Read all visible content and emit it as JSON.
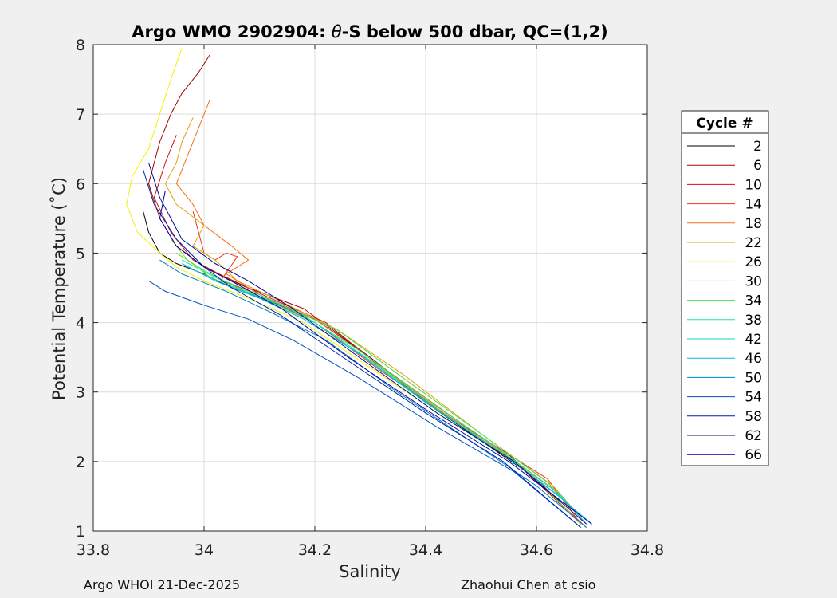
{
  "chart_data": {
    "type": "line",
    "title_prefix": "Argo WMO 2902904: ",
    "title_theta": "θ",
    "title_suffix": "-S below 500 dbar,  QC=(1,2)",
    "xlabel": "Salinity",
    "ylabel": "Potential Temperature (˚C)",
    "xlim": [
      33.8,
      34.8
    ],
    "ylim": [
      1,
      8
    ],
    "xticks": [
      "33.8",
      "34",
      "34.2",
      "34.4",
      "34.6",
      "34.8"
    ],
    "yticks": [
      "1",
      "2",
      "3",
      "4",
      "5",
      "6",
      "7",
      "8"
    ],
    "grid": true,
    "legend_title": "Cycle #",
    "legend": [
      {
        "label": "2",
        "color": "#000000"
      },
      {
        "label": "6",
        "color": "#a50000"
      },
      {
        "label": "10",
        "color": "#d41010"
      },
      {
        "label": "14",
        "color": "#e83a1a"
      },
      {
        "label": "18",
        "color": "#f07018"
      },
      {
        "label": "22",
        "color": "#e0a010"
      },
      {
        "label": "26",
        "color": "#f5f000"
      },
      {
        "label": "30",
        "color": "#9be020"
      },
      {
        "label": "34",
        "color": "#40e040"
      },
      {
        "label": "38",
        "color": "#20e0a0"
      },
      {
        "label": "42",
        "color": "#10d0d0"
      },
      {
        "label": "46",
        "color": "#00b8e0"
      },
      {
        "label": "50",
        "color": "#0080c8"
      },
      {
        "label": "54",
        "color": "#0050c0"
      },
      {
        "label": "58",
        "color": "#0020a8"
      },
      {
        "label": "62",
        "color": "#001090"
      },
      {
        "label": "66",
        "color": "#0000a0"
      }
    ],
    "series": [
      {
        "name": "2",
        "x": [
          33.89,
          33.9,
          33.92,
          33.95,
          34.0,
          34.05,
          34.12,
          34.2,
          34.3,
          34.4,
          34.5,
          34.6,
          34.68
        ],
        "y": [
          5.6,
          5.3,
          5.0,
          4.85,
          4.7,
          4.5,
          4.3,
          4.05,
          3.5,
          2.85,
          2.3,
          1.75,
          1.1
        ]
      },
      {
        "name": "6",
        "x": [
          34.01,
          33.99,
          33.96,
          33.94,
          33.92,
          33.9,
          33.92,
          33.95,
          34.0,
          34.08,
          34.18,
          34.3,
          34.42,
          34.55,
          34.68
        ],
        "y": [
          7.85,
          7.6,
          7.3,
          7.0,
          6.6,
          6.0,
          5.5,
          5.1,
          4.8,
          4.5,
          4.2,
          3.5,
          2.75,
          2.1,
          1.1
        ]
      },
      {
        "name": "10",
        "x": [
          33.95,
          33.93,
          33.91,
          33.94,
          33.98,
          34.05,
          34.12,
          34.22,
          34.32,
          34.45,
          34.56,
          34.69
        ],
        "y": [
          6.7,
          6.3,
          5.8,
          5.3,
          4.9,
          4.6,
          4.35,
          4.0,
          3.35,
          2.6,
          2.0,
          1.05
        ]
      },
      {
        "name": "14",
        "x": [
          33.98,
          33.99,
          34.0,
          34.02,
          34.04,
          34.06,
          34.03,
          34.1,
          34.2,
          34.32,
          34.48,
          34.62,
          34.68
        ],
        "y": [
          5.6,
          5.3,
          5.0,
          4.9,
          5.0,
          4.95,
          4.6,
          4.4,
          4.0,
          3.3,
          2.45,
          1.75,
          1.1
        ]
      },
      {
        "name": "18",
        "x": [
          34.01,
          33.99,
          33.97,
          33.95,
          33.98,
          34.0,
          34.05,
          34.08,
          34.04,
          34.1,
          34.2,
          34.35,
          34.5,
          34.63,
          34.69
        ],
        "y": [
          7.2,
          6.8,
          6.4,
          6.0,
          5.7,
          5.4,
          5.1,
          4.9,
          4.7,
          4.4,
          4.05,
          3.2,
          2.35,
          1.6,
          1.1
        ]
      },
      {
        "name": "22",
        "x": [
          33.98,
          33.96,
          33.95,
          33.93,
          33.95,
          34.0,
          33.98,
          34.02,
          34.06,
          34.14,
          34.24,
          34.36,
          34.5,
          34.63,
          34.69
        ],
        "y": [
          6.95,
          6.6,
          6.3,
          6.0,
          5.7,
          5.4,
          5.1,
          4.9,
          4.6,
          4.3,
          3.9,
          3.25,
          2.4,
          1.65,
          1.1
        ]
      },
      {
        "name": "26",
        "x": [
          33.96,
          33.94,
          33.92,
          33.9,
          33.87,
          33.86,
          33.88,
          33.92,
          33.95,
          34.0,
          34.08,
          34.18,
          34.3,
          34.44,
          34.58,
          34.68
        ],
        "y": [
          7.95,
          7.5,
          7.0,
          6.5,
          6.1,
          5.7,
          5.3,
          5.0,
          4.8,
          4.6,
          4.35,
          4.0,
          3.35,
          2.6,
          1.9,
          1.1
        ]
      },
      {
        "name": "30",
        "x": [
          33.94,
          33.97,
          34.02,
          34.1,
          34.2,
          34.32,
          34.45,
          34.58,
          34.68
        ],
        "y": [
          5.2,
          4.9,
          4.6,
          4.35,
          4.0,
          3.35,
          2.6,
          1.9,
          1.1
        ]
      },
      {
        "name": "34",
        "x": [
          33.95,
          34.0,
          34.06,
          34.14,
          34.24,
          34.36,
          34.5,
          34.62,
          34.69
        ],
        "y": [
          5.0,
          4.75,
          4.5,
          4.25,
          3.9,
          3.2,
          2.4,
          1.7,
          1.1
        ]
      },
      {
        "name": "38",
        "x": [
          33.96,
          34.02,
          34.1,
          34.18,
          34.28,
          34.4,
          34.52,
          34.64,
          34.69
        ],
        "y": [
          4.9,
          4.65,
          4.4,
          4.1,
          3.6,
          2.9,
          2.25,
          1.55,
          1.1
        ]
      },
      {
        "name": "42",
        "x": [
          33.97,
          34.04,
          34.12,
          34.2,
          34.3,
          34.42,
          34.55,
          34.65,
          34.69
        ],
        "y": [
          4.8,
          4.55,
          4.3,
          4.0,
          3.45,
          2.75,
          2.05,
          1.45,
          1.1
        ]
      },
      {
        "name": "46",
        "x": [
          33.96,
          34.02,
          34.1,
          34.18,
          34.28,
          34.4,
          34.54,
          34.64,
          34.7
        ],
        "y": [
          4.85,
          4.6,
          4.35,
          4.05,
          3.55,
          2.85,
          2.1,
          1.5,
          1.1
        ]
      },
      {
        "name": "50",
        "x": [
          33.92,
          33.96,
          34.04,
          34.12,
          34.22,
          34.34,
          34.48,
          34.6,
          34.69
        ],
        "y": [
          4.9,
          4.7,
          4.45,
          4.15,
          3.75,
          3.05,
          2.3,
          1.65,
          1.05
        ]
      },
      {
        "name": "54",
        "x": [
          33.9,
          33.93,
          34.0,
          34.08,
          34.16,
          34.28,
          34.42,
          34.56,
          34.68
        ],
        "y": [
          4.6,
          4.45,
          4.25,
          4.05,
          3.75,
          3.2,
          2.5,
          1.85,
          1.05
        ]
      },
      {
        "name": "58",
        "x": [
          33.89,
          33.91,
          33.95,
          34.0,
          34.05,
          34.14,
          34.26,
          34.4,
          34.54,
          34.68
        ],
        "y": [
          6.2,
          5.7,
          5.2,
          4.8,
          4.5,
          4.1,
          3.45,
          2.7,
          2.0,
          1.05
        ]
      },
      {
        "name": "62",
        "x": [
          33.9,
          33.92,
          33.96,
          34.02,
          34.08,
          34.16,
          34.28,
          34.42,
          34.56,
          34.69
        ],
        "y": [
          6.3,
          5.8,
          5.2,
          4.85,
          4.6,
          4.2,
          3.5,
          2.7,
          2.0,
          1.1
        ]
      },
      {
        "name": "66",
        "x": [
          33.93,
          33.92,
          33.95,
          34.0,
          34.06,
          34.14,
          34.26,
          34.4,
          34.55,
          34.7
        ],
        "y": [
          5.9,
          5.5,
          5.1,
          4.8,
          4.55,
          4.2,
          3.5,
          2.75,
          2.0,
          1.1
        ]
      }
    ]
  },
  "footer": {
    "left": "Argo WHOI 21-Dec-2025",
    "right": "Zhaohui Chen at csio"
  }
}
